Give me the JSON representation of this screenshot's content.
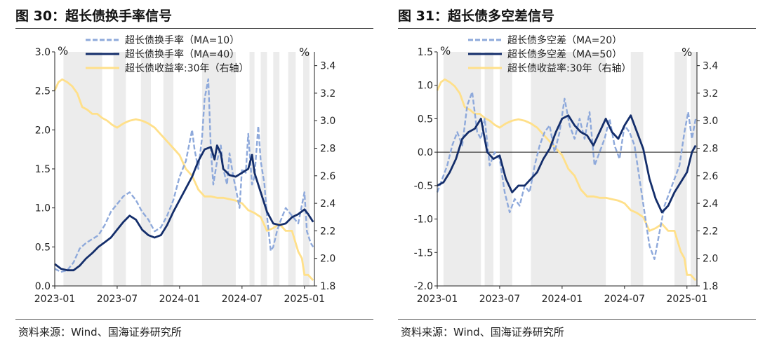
{
  "source_text": "资料来源：Wind、国海证券研究所",
  "chart_data": [
    {
      "type": "line",
      "title": "图 30：超长债换手率信号",
      "y_unit_left": "%",
      "y_unit_right": "%",
      "ylim_left": [
        0,
        3
      ],
      "yticks_left": [
        0,
        0.5,
        1,
        1.5,
        2,
        2.5,
        3
      ],
      "ytick_labels_left": [
        "0.0",
        "0.5",
        "1.0",
        "1.5",
        "2.0",
        "2.5",
        "3.0"
      ],
      "ylim_right": [
        1.8,
        3.5
      ],
      "yticks_right": [
        1.8,
        2.0,
        2.2,
        2.4,
        2.6,
        2.8,
        3.0,
        3.2,
        3.4
      ],
      "ytick_labels_right": [
        "1.8",
        "2.0",
        "2.2",
        "2.4",
        "2.6",
        "2.8",
        "3.0",
        "3.2",
        "3.4"
      ],
      "xlim": [
        2023.0,
        2025.08
      ],
      "xticks": [
        2023.0,
        2023.5,
        2024.0,
        2024.5,
        2025.0
      ],
      "xtick_labels": [
        "2023-01",
        "2023-07",
        "2024-01",
        "2024-07",
        "2025-01"
      ],
      "shaded_periods": [
        [
          2023.07,
          2023.38
        ],
        [
          2023.47,
          2023.57
        ],
        [
          2023.69,
          2023.77
        ],
        [
          2023.87,
          2023.95
        ],
        [
          2024.18,
          2024.45
        ],
        [
          2024.56,
          2024.6
        ],
        [
          2024.65,
          2024.7
        ],
        [
          2024.75,
          2024.8
        ],
        [
          2024.87,
          2024.93
        ],
        [
          2024.99,
          2025.04
        ]
      ],
      "series": [
        {
          "name": "超长债换手率（MA=10）",
          "axis": "left",
          "style": "dashed",
          "color": "#8EA9DB",
          "x": [
            2023.0,
            2023.05,
            2023.1,
            2023.15,
            2023.2,
            2023.25,
            2023.3,
            2023.35,
            2023.4,
            2023.45,
            2023.5,
            2023.55,
            2023.6,
            2023.65,
            2023.7,
            2023.75,
            2023.8,
            2023.85,
            2023.9,
            2023.95,
            2024.0,
            2024.05,
            2024.1,
            2024.12,
            2024.15,
            2024.18,
            2024.2,
            2024.23,
            2024.25,
            2024.27,
            2024.3,
            2024.33,
            2024.35,
            2024.38,
            2024.4,
            2024.43,
            2024.45,
            2024.48,
            2024.5,
            2024.53,
            2024.55,
            2024.58,
            2024.6,
            2024.63,
            2024.65,
            2024.68,
            2024.7,
            2024.73,
            2024.75,
            2024.78,
            2024.8,
            2024.85,
            2024.9,
            2024.95,
            2025.0,
            2025.02,
            2025.05,
            2025.07
          ],
          "values": [
            0.22,
            0.18,
            0.2,
            0.3,
            0.48,
            0.55,
            0.6,
            0.65,
            0.78,
            0.95,
            1.05,
            1.15,
            1.2,
            1.1,
            0.95,
            0.85,
            0.7,
            0.75,
            0.9,
            1.1,
            1.4,
            1.6,
            2.0,
            1.75,
            1.5,
            1.9,
            2.4,
            2.65,
            1.75,
            1.3,
            1.6,
            1.8,
            1.5,
            1.3,
            1.7,
            1.4,
            1.25,
            1.0,
            1.5,
            1.45,
            1.95,
            1.3,
            1.4,
            2.05,
            1.6,
            1.3,
            0.9,
            0.45,
            0.5,
            0.7,
            0.8,
            1.0,
            0.9,
            0.8,
            1.2,
            0.7,
            0.55,
            0.5
          ]
        },
        {
          "name": "超长债换手率（MA=40）",
          "axis": "left",
          "style": "solid",
          "color": "#142E6B",
          "x": [
            2023.0,
            2023.05,
            2023.1,
            2023.15,
            2023.2,
            2023.25,
            2023.3,
            2023.35,
            2023.4,
            2023.45,
            2023.5,
            2023.55,
            2023.6,
            2023.65,
            2023.7,
            2023.75,
            2023.8,
            2023.85,
            2023.9,
            2023.95,
            2024.0,
            2024.05,
            2024.1,
            2024.15,
            2024.2,
            2024.25,
            2024.28,
            2024.3,
            2024.33,
            2024.35,
            2024.4,
            2024.45,
            2024.5,
            2024.55,
            2024.58,
            2024.6,
            2024.65,
            2024.7,
            2024.75,
            2024.8,
            2024.85,
            2024.9,
            2024.95,
            2025.0,
            2025.03,
            2025.07
          ],
          "values": [
            0.28,
            0.22,
            0.2,
            0.2,
            0.26,
            0.35,
            0.42,
            0.5,
            0.56,
            0.62,
            0.72,
            0.82,
            0.9,
            0.85,
            0.72,
            0.65,
            0.62,
            0.65,
            0.78,
            0.95,
            1.1,
            1.25,
            1.4,
            1.6,
            1.75,
            1.78,
            1.62,
            1.8,
            1.7,
            1.5,
            1.42,
            1.4,
            1.45,
            1.5,
            1.68,
            1.45,
            1.2,
            0.95,
            0.8,
            0.78,
            0.8,
            0.88,
            0.92,
            0.98,
            0.92,
            0.82
          ]
        },
        {
          "name": "超长债收益率:30年（右轴）",
          "axis": "right",
          "style": "solid",
          "color": "#FFE08A",
          "x": [
            2023.0,
            2023.03,
            2023.06,
            2023.1,
            2023.14,
            2023.18,
            2023.22,
            2023.26,
            2023.3,
            2023.34,
            2023.38,
            2023.42,
            2023.46,
            2023.5,
            2023.55,
            2023.6,
            2023.65,
            2023.7,
            2023.75,
            2023.8,
            2023.85,
            2023.9,
            2023.95,
            2024.0,
            2024.05,
            2024.1,
            2024.15,
            2024.2,
            2024.25,
            2024.3,
            2024.35,
            2024.4,
            2024.45,
            2024.5,
            2024.55,
            2024.6,
            2024.65,
            2024.7,
            2024.75,
            2024.8,
            2024.85,
            2024.9,
            2024.95,
            2024.98,
            2025.0,
            2025.03,
            2025.07
          ],
          "values": [
            3.22,
            3.28,
            3.3,
            3.28,
            3.25,
            3.2,
            3.1,
            3.08,
            3.05,
            3.05,
            3.02,
            3.0,
            2.97,
            2.95,
            2.98,
            3.0,
            3.01,
            3.0,
            2.98,
            2.95,
            2.9,
            2.85,
            2.8,
            2.75,
            2.65,
            2.6,
            2.5,
            2.45,
            2.45,
            2.44,
            2.44,
            2.43,
            2.42,
            2.4,
            2.35,
            2.33,
            2.3,
            2.2,
            2.22,
            2.25,
            2.2,
            2.2,
            2.05,
            2.0,
            1.88,
            1.88,
            1.84
          ]
        }
      ]
    },
    {
      "type": "line",
      "title": "图 31：超长债多空差信号",
      "y_unit_left": "%",
      "y_unit_right": "%",
      "ylim_left": [
        -2,
        1.5
      ],
      "yticks_left": [
        -2,
        -1.5,
        -1,
        -0.5,
        0,
        0.5,
        1,
        1.5
      ],
      "ytick_labels_left": [
        "-2.0",
        "-1.5",
        "-1.0",
        "-0.5",
        "0.0",
        "0.5",
        "1.0",
        "1.5"
      ],
      "ylim_right": [
        1.8,
        3.5
      ],
      "yticks_right": [
        1.8,
        2.0,
        2.2,
        2.4,
        2.6,
        2.8,
        3.0,
        3.2,
        3.4
      ],
      "ytick_labels_right": [
        "1.8",
        "2.0",
        "2.2",
        "2.4",
        "2.6",
        "2.8",
        "3.0",
        "3.2",
        "3.4"
      ],
      "xlim": [
        2023.0,
        2025.08
      ],
      "xticks": [
        2023.0,
        2023.5,
        2024.0,
        2024.5,
        2025.0
      ],
      "xtick_labels": [
        "2023-01",
        "2023-07",
        "2024-01",
        "2024-07",
        "2025-01"
      ],
      "shaded_periods": [
        [
          2023.05,
          2023.35
        ],
        [
          2023.38,
          2023.45
        ],
        [
          2023.5,
          2023.6
        ],
        [
          2023.75,
          2024.35
        ],
        [
          2024.55,
          2024.65
        ],
        [
          2024.9,
          2025.0
        ],
        [
          2025.03,
          2025.08
        ]
      ],
      "series": [
        {
          "name": "超长债多空差（MA=20）",
          "axis": "left",
          "style": "dashed",
          "color": "#8EA9DB",
          "x": [
            2023.0,
            2023.04,
            2023.08,
            2023.12,
            2023.16,
            2023.2,
            2023.24,
            2023.28,
            2023.32,
            2023.35,
            2023.38,
            2023.42,
            2023.46,
            2023.5,
            2023.54,
            2023.58,
            2023.62,
            2023.66,
            2023.7,
            2023.74,
            2023.78,
            2023.82,
            2023.86,
            2023.9,
            2023.94,
            2023.98,
            2024.02,
            2024.06,
            2024.1,
            2024.14,
            2024.18,
            2024.22,
            2024.26,
            2024.3,
            2024.34,
            2024.38,
            2024.42,
            2024.46,
            2024.5,
            2024.54,
            2024.58,
            2024.62,
            2024.66,
            2024.7,
            2024.74,
            2024.78,
            2024.82,
            2024.86,
            2024.9,
            2024.94,
            2024.98,
            2025.01,
            2025.04,
            2025.07
          ],
          "values": [
            -0.6,
            -0.4,
            -0.2,
            0.1,
            0.3,
            0.1,
            0.7,
            0.9,
            0.3,
            0.2,
            0.5,
            -0.2,
            0.0,
            -0.1,
            -0.6,
            -0.9,
            -0.7,
            -0.8,
            -0.5,
            -0.6,
            -0.2,
            0.1,
            0.3,
            0.4,
            0.0,
            0.3,
            0.8,
            0.4,
            0.2,
            0.5,
            0.2,
            0.6,
            -0.2,
            0.0,
            0.2,
            0.5,
            0.1,
            -0.1,
            0.4,
            0.3,
            0.1,
            -0.4,
            -0.9,
            -1.4,
            -1.6,
            -1.2,
            -0.8,
            -0.6,
            -0.4,
            -0.2,
            0.3,
            0.6,
            0.2,
            0.5
          ]
        },
        {
          "name": "超长债多空差（MA=50）",
          "axis": "left",
          "style": "solid",
          "color": "#142E6B",
          "x": [
            2023.0,
            2023.05,
            2023.1,
            2023.15,
            2023.2,
            2023.25,
            2023.3,
            2023.35,
            2023.4,
            2023.45,
            2023.5,
            2023.55,
            2023.6,
            2023.65,
            2023.7,
            2023.75,
            2023.8,
            2023.85,
            2023.9,
            2023.95,
            2024.0,
            2024.05,
            2024.1,
            2024.15,
            2024.2,
            2024.25,
            2024.3,
            2024.35,
            2024.4,
            2024.45,
            2024.5,
            2024.55,
            2024.6,
            2024.65,
            2024.7,
            2024.75,
            2024.8,
            2024.85,
            2024.9,
            2024.95,
            2025.0,
            2025.04,
            2025.07
          ],
          "values": [
            -0.5,
            -0.45,
            -0.3,
            -0.1,
            0.2,
            0.3,
            0.35,
            0.5,
            0.0,
            -0.1,
            -0.05,
            -0.4,
            -0.6,
            -0.5,
            -0.5,
            -0.4,
            -0.3,
            -0.1,
            0.05,
            0.3,
            0.5,
            0.55,
            0.4,
            0.3,
            0.25,
            0.1,
            0.3,
            0.5,
            0.3,
            0.2,
            0.4,
            0.55,
            0.3,
            0.05,
            -0.4,
            -0.7,
            -0.9,
            -0.8,
            -0.6,
            -0.45,
            -0.3,
            0.0,
            0.1
          ]
        },
        {
          "name": "超长债收益率:30年（右轴）",
          "axis": "right",
          "style": "solid",
          "color": "#FFE08A",
          "x": [
            2023.0,
            2023.03,
            2023.06,
            2023.1,
            2023.14,
            2023.18,
            2023.22,
            2023.26,
            2023.3,
            2023.34,
            2023.38,
            2023.42,
            2023.46,
            2023.5,
            2023.55,
            2023.6,
            2023.65,
            2023.7,
            2023.75,
            2023.8,
            2023.85,
            2023.9,
            2023.95,
            2024.0,
            2024.05,
            2024.1,
            2024.15,
            2024.2,
            2024.25,
            2024.3,
            2024.35,
            2024.4,
            2024.45,
            2024.5,
            2024.55,
            2024.6,
            2024.65,
            2024.7,
            2024.75,
            2024.8,
            2024.85,
            2024.9,
            2024.95,
            2024.98,
            2025.0,
            2025.03,
            2025.07
          ],
          "values": [
            3.22,
            3.28,
            3.3,
            3.28,
            3.25,
            3.2,
            3.1,
            3.08,
            3.05,
            3.05,
            3.02,
            3.0,
            2.97,
            2.95,
            2.98,
            3.0,
            3.01,
            3.0,
            2.98,
            2.95,
            2.9,
            2.85,
            2.8,
            2.75,
            2.65,
            2.6,
            2.5,
            2.45,
            2.45,
            2.44,
            2.44,
            2.43,
            2.42,
            2.4,
            2.35,
            2.33,
            2.3,
            2.2,
            2.22,
            2.25,
            2.2,
            2.2,
            2.05,
            2.0,
            1.88,
            1.88,
            1.84
          ]
        }
      ]
    }
  ]
}
